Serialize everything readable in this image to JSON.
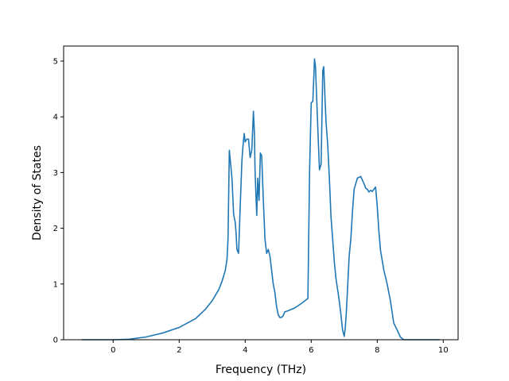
{
  "chart_data": {
    "type": "line",
    "xlabel": "Frequency (THz)",
    "ylabel": "Density of States",
    "xlim": [
      -1.5,
      10.45
    ],
    "ylim": [
      0,
      5.27
    ],
    "xticks": [
      0,
      2,
      4,
      6,
      8,
      10
    ],
    "yticks": [
      0,
      1,
      2,
      3,
      4,
      5
    ],
    "grid": false,
    "line_color": "#1f77b4",
    "series": [
      {
        "x": [
          -0.95,
          -0.5,
          0.0,
          0.3,
          0.5,
          1.0,
          1.5,
          2.0,
          2.5,
          2.8,
          3.0,
          3.2,
          3.3,
          3.4,
          3.45,
          3.48,
          3.52,
          3.6,
          3.65,
          3.7,
          3.72,
          3.75,
          3.8,
          3.85,
          3.9,
          3.93,
          3.97,
          4.0,
          4.05,
          4.1,
          4.15,
          4.2,
          4.25,
          4.28,
          4.3,
          4.35,
          4.38,
          4.42,
          4.46,
          4.5,
          4.55,
          4.6,
          4.65,
          4.7,
          4.75,
          4.8,
          4.85,
          4.9,
          4.95,
          5.0,
          5.05,
          5.1,
          5.15,
          5.2,
          5.3,
          5.5,
          5.7,
          5.9,
          5.95,
          6.0,
          6.05,
          6.1,
          6.13,
          6.2,
          6.25,
          6.3,
          6.35,
          6.38,
          6.42,
          6.45,
          6.5,
          6.55,
          6.6,
          6.65,
          6.7,
          6.75,
          6.8,
          6.85,
          6.9,
          6.95,
          7.0,
          7.03,
          7.06,
          7.1,
          7.15,
          7.2,
          7.25,
          7.3,
          7.4,
          7.5,
          7.6,
          7.65,
          7.7,
          7.75,
          7.8,
          7.85,
          7.9,
          7.95,
          8.0,
          8.05,
          8.1,
          8.2,
          8.3,
          8.4,
          8.5,
          8.6,
          8.7,
          8.8,
          8.9,
          9.0,
          9.05,
          9.2,
          9.5,
          9.9
        ],
        "y": [
          0,
          0,
          0,
          0.005,
          0.01,
          0.05,
          0.12,
          0.22,
          0.38,
          0.55,
          0.7,
          0.9,
          1.05,
          1.25,
          1.45,
          1.8,
          3.4,
          2.9,
          2.25,
          2.1,
          1.95,
          1.62,
          1.55,
          2.4,
          3.2,
          3.45,
          3.7,
          3.55,
          3.6,
          3.6,
          3.27,
          3.4,
          4.1,
          3.7,
          3.0,
          2.23,
          2.9,
          2.5,
          3.35,
          3.3,
          2.5,
          1.8,
          1.55,
          1.62,
          1.5,
          1.25,
          1.0,
          0.85,
          0.6,
          0.45,
          0.4,
          0.4,
          0.43,
          0.5,
          0.52,
          0.57,
          0.65,
          0.74,
          3.0,
          4.25,
          4.28,
          5.04,
          4.9,
          3.8,
          3.05,
          3.15,
          4.82,
          4.9,
          4.3,
          3.9,
          3.5,
          2.9,
          2.2,
          1.8,
          1.4,
          1.1,
          0.9,
          0.7,
          0.45,
          0.18,
          0.06,
          0.2,
          0.45,
          0.9,
          1.5,
          1.8,
          2.3,
          2.7,
          2.9,
          2.93,
          2.8,
          2.72,
          2.7,
          2.65,
          2.68,
          2.66,
          2.7,
          2.74,
          2.4,
          1.95,
          1.6,
          1.25,
          1.0,
          0.7,
          0.3,
          0.18,
          0.05,
          0.0,
          0.0,
          0.0,
          0.0,
          0.0,
          0.0,
          0.0
        ]
      }
    ]
  }
}
